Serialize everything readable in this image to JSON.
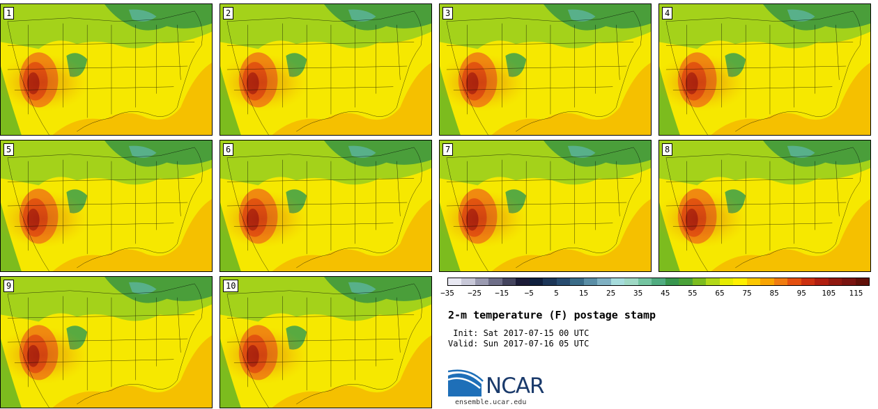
{
  "title": "2-m temperature (F) postage stamp",
  "init_line": " Init: Sat 2017-07-15 00 UTC",
  "valid_line": "Valid: Sun 2017-07-16 05 UTC",
  "stamps": [
    "1",
    "2",
    "3",
    "4",
    "5",
    "6",
    "7",
    "8",
    "9",
    "10"
  ],
  "colorbar": {
    "tick_labels": [
      "−35",
      "−25",
      "−15",
      "−5",
      "5",
      "15",
      "25",
      "35",
      "45",
      "55",
      "65",
      "75",
      "85",
      "95",
      "105",
      "115"
    ],
    "colors": [
      "#e8e8f2",
      "#c8c8d8",
      "#9a9ab0",
      "#6e6e88",
      "#44445e",
      "#1c1c38",
      "#10203e",
      "#1c3658",
      "#284c70",
      "#3a6c88",
      "#5a8ea6",
      "#7fb0c2",
      "#a6dcdc",
      "#9ed8c4",
      "#74c4a0",
      "#50ac80",
      "#38964e",
      "#4aa238",
      "#7cbc1e",
      "#b2d818",
      "#e6ec00",
      "#fff000",
      "#fcc800",
      "#f8a400",
      "#f07c10",
      "#e45010",
      "#cc3010",
      "#b01e10",
      "#901810",
      "#7a1410",
      "#601008"
    ]
  },
  "logo": {
    "name": "NCAR",
    "url": "ensemble.ucar.edu"
  }
}
